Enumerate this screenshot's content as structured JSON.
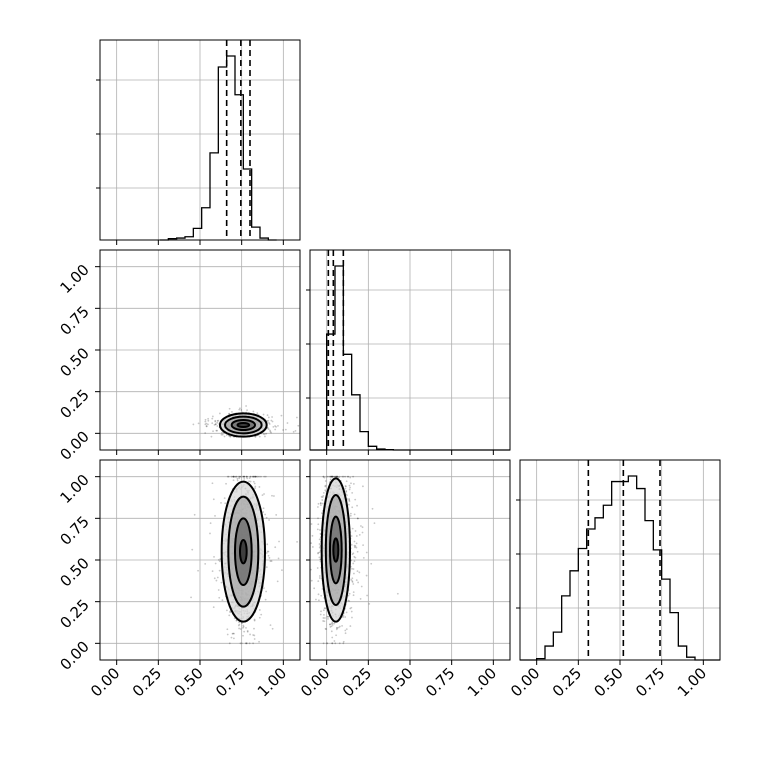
{
  "chart_data": {
    "type": "corner",
    "grid": true,
    "parameters": [
      {
        "ticks": [
          "0.00",
          "0.25",
          "0.50",
          "0.75",
          "1.00"
        ],
        "range": [
          -0.1,
          1.1
        ]
      },
      {
        "ticks": [
          "0.00",
          "0.25",
          "0.50",
          "0.75",
          "1.00"
        ],
        "range": [
          -0.1,
          1.1
        ]
      },
      {
        "ticks": [
          "0.00",
          "0.25",
          "0.50",
          "0.75",
          "1.00"
        ],
        "range": [
          -0.1,
          1.1
        ]
      }
    ],
    "histograms": [
      {
        "bins": [
          0.26,
          0.31,
          0.36,
          0.41,
          0.46,
          0.51,
          0.56,
          0.61,
          0.66,
          0.71,
          0.76,
          0.81,
          0.86,
          0.91,
          0.96
        ],
        "counts": [
          0,
          2,
          3,
          5,
          18,
          50,
          135,
          268,
          285,
          225,
          110,
          20,
          3,
          0
        ],
        "quantiles": [
          0.66,
          0.745,
          0.8
        ]
      },
      {
        "bins": [
          -0.1,
          -0.05,
          0.0,
          0.05,
          0.1,
          0.15,
          0.2,
          0.25,
          0.3,
          0.35,
          0.4,
          0.45,
          0.5,
          1.1
        ],
        "counts": [
          0,
          0,
          630,
          1000,
          520,
          300,
          100,
          20,
          5,
          2,
          0,
          0,
          0
        ],
        "quantiles": [
          0.01,
          0.04,
          0.1
        ]
      },
      {
        "bins": [
          -0.1,
          0.0,
          0.05,
          0.1,
          0.15,
          0.2,
          0.25,
          0.3,
          0.35,
          0.4,
          0.45,
          0.5,
          0.55,
          0.6,
          0.65,
          0.7,
          0.75,
          0.8,
          0.85,
          0.9,
          0.95,
          1.0,
          1.1
        ],
        "counts": [
          0,
          5,
          50,
          100,
          230,
          320,
          400,
          470,
          510,
          555,
          640,
          640,
          660,
          615,
          500,
          395,
          290,
          170,
          50,
          10,
          0,
          0
        ],
        "quantiles": [
          0.31,
          0.52,
          0.74
        ]
      }
    ],
    "scatter_panels": [
      {
        "x_param": 0,
        "y_param": 1,
        "center": [
          0.76,
          0.05
        ],
        "spread": [
          0.055,
          0.03
        ],
        "levels": [
          [
            0.035,
            0.012
          ],
          [
            0.07,
            0.03
          ],
          [
            0.11,
            0.05
          ],
          [
            0.14,
            0.07
          ]
        ]
      },
      {
        "x_param": 0,
        "y_param": 2,
        "center": [
          0.76,
          0.55
        ],
        "spread": [
          0.05,
          0.22
        ],
        "levels": [
          [
            0.02,
            0.07
          ],
          [
            0.05,
            0.2
          ],
          [
            0.09,
            0.33
          ],
          [
            0.13,
            0.42
          ]
        ]
      },
      {
        "x_param": 1,
        "y_param": 2,
        "center": [
          0.055,
          0.56
        ],
        "spread": [
          0.045,
          0.22
        ],
        "levels": [
          [
            0.015,
            0.07
          ],
          [
            0.035,
            0.2
          ],
          [
            0.06,
            0.33
          ],
          [
            0.085,
            0.43
          ]
        ]
      }
    ]
  }
}
